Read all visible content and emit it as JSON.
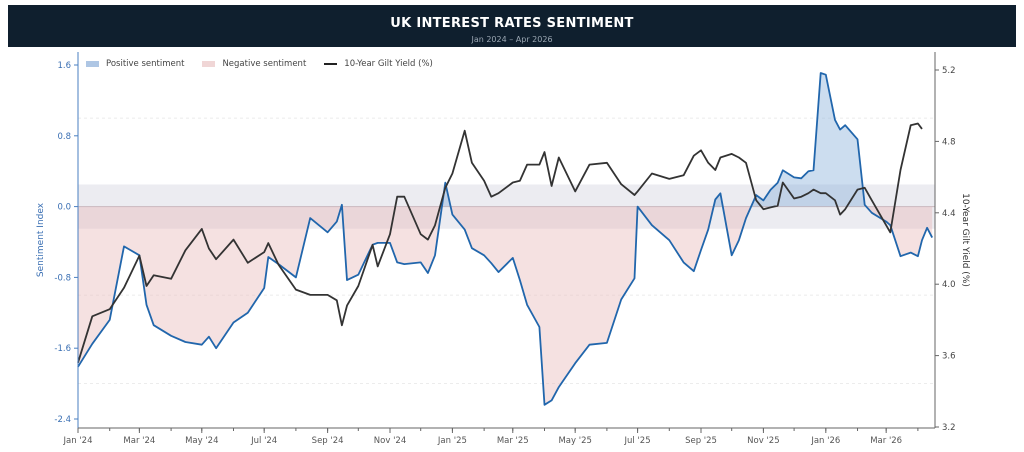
{
  "header": {
    "title": "UK INTEREST RATES SENTIMENT",
    "subtitle": "Jan 2024 – Apr 2026"
  },
  "chart_data": {
    "type": "line",
    "title": "UK INTEREST RATES SENTIMENT",
    "subtitle": "Jan 2024 – Apr 2026",
    "ylabel": "Sentiment Index",
    "y2label": "10-Year Gilt Yield (%)",
    "ylim": [
      -2.5,
      1.75
    ],
    "y2lim": [
      3.18,
      5.3
    ],
    "yticks": [
      "1.6",
      "0.8",
      "0.0",
      "-0.8",
      "-1.6",
      "-2.4"
    ],
    "y2ticks": [
      "5.2",
      "4.8",
      "4.4",
      "4.0",
      "3.6",
      "3.2"
    ],
    "xticks": [
      "Jan '24",
      "Mar '24",
      "May '24",
      "Jul '24",
      "Sep '24",
      "Nov '24",
      "Jan '25",
      "Mar '25",
      "May '25",
      "Jul '25",
      "Sep '25",
      "Nov '25",
      "Jan '26",
      "Mar '26"
    ],
    "xtick_dates": [
      "2024-01-01",
      "2024-03-01",
      "2024-05-01",
      "2024-07-01",
      "2024-09-01",
      "2024-11-01",
      "2025-01-01",
      "2025-03-01",
      "2025-05-01",
      "2025-07-01",
      "2025-09-01",
      "2025-11-01",
      "2026-01-01",
      "2026-03-01"
    ],
    "neutral_band": [
      -0.25,
      0.25
    ],
    "grid": "dashed horizontal",
    "legend": {
      "placement": "top-left",
      "entries": [
        "Positive sentiment",
        "Negative sentiment",
        "10-Year Gilt Yield (%)"
      ]
    },
    "colors": {
      "sentiment": "#2166ac",
      "positive_fill": "#8fb3dc",
      "negative_fill": "#e8bcbc",
      "yield": "#333333",
      "band": "#ececf1"
    },
    "x": [
      "2024-01-01",
      "2024-01-15",
      "2024-02-01",
      "2024-02-15",
      "2024-03-01",
      "2024-03-08",
      "2024-03-15",
      "2024-04-01",
      "2024-04-15",
      "2024-05-01",
      "2024-05-08",
      "2024-05-15",
      "2024-06-01",
      "2024-06-15",
      "2024-07-01",
      "2024-07-05",
      "2024-07-15",
      "2024-08-01",
      "2024-08-15",
      "2024-09-01",
      "2024-09-10",
      "2024-09-15",
      "2024-09-20",
      "2024-10-01",
      "2024-10-15",
      "2024-10-20",
      "2024-11-01",
      "2024-11-08",
      "2024-11-15",
      "2024-12-01",
      "2024-12-08",
      "2024-12-15",
      "2024-12-25",
      "2025-01-01",
      "2025-01-13",
      "2025-01-20",
      "2025-02-01",
      "2025-02-08",
      "2025-02-15",
      "2025-03-01",
      "2025-03-08",
      "2025-03-15",
      "2025-03-27",
      "2025-04-01",
      "2025-04-08",
      "2025-04-15",
      "2025-05-01",
      "2025-05-15",
      "2025-06-01",
      "2025-06-15",
      "2025-06-28",
      "2025-07-01",
      "2025-07-15",
      "2025-08-01",
      "2025-08-15",
      "2025-08-25",
      "2025-09-01",
      "2025-09-08",
      "2025-09-15",
      "2025-09-20",
      "2025-10-01",
      "2025-10-08",
      "2025-10-15",
      "2025-10-25",
      "2025-11-01",
      "2025-11-08",
      "2025-11-15",
      "2025-11-20",
      "2025-12-01",
      "2025-12-08",
      "2025-12-15",
      "2025-12-20",
      "2025-12-27",
      "2026-01-01",
      "2026-01-10",
      "2026-01-15",
      "2026-01-20",
      "2026-02-01",
      "2026-02-08",
      "2026-02-15",
      "2026-03-01",
      "2026-03-05",
      "2026-03-15",
      "2026-03-25",
      "2026-04-01",
      "2026-04-05",
      "2026-04-10",
      "2026-04-15"
    ],
    "series": [
      {
        "name": "Sentiment Index",
        "axis": "left",
        "values": [
          -1.81,
          -1.55,
          -1.28,
          -0.45,
          -0.55,
          -1.11,
          -1.34,
          -1.46,
          -1.53,
          -1.56,
          -1.47,
          -1.6,
          -1.31,
          -1.2,
          -0.92,
          -0.57,
          -0.65,
          -0.8,
          -0.13,
          -0.29,
          -0.17,
          0.02,
          -0.83,
          -0.77,
          -0.43,
          -0.41,
          -0.41,
          -0.63,
          -0.65,
          -0.63,
          -0.75,
          -0.55,
          0.27,
          -0.09,
          -0.26,
          -0.47,
          -0.55,
          -0.64,
          -0.74,
          -0.58,
          -0.83,
          -1.11,
          -1.36,
          -2.24,
          -2.19,
          -2.04,
          -1.77,
          -1.56,
          -1.54,
          -1.05,
          -0.81,
          0.0,
          -0.21,
          -0.38,
          -0.63,
          -0.73,
          -0.49,
          -0.26,
          0.08,
          0.15,
          -0.55,
          -0.38,
          -0.13,
          0.13,
          0.07,
          0.19,
          0.27,
          0.41,
          0.33,
          0.32,
          0.4,
          0.41,
          1.51,
          1.49,
          0.98,
          0.87,
          0.92,
          0.76,
          0.02,
          -0.07,
          -0.17,
          -0.21,
          -0.56,
          -0.52,
          -0.56,
          -0.38,
          -0.24,
          -0.35
        ]
      },
      {
        "name": "10-Year Gilt Yield (%)",
        "axis": "right",
        "values": [
          3.56,
          3.82,
          3.86,
          3.98,
          4.16,
          3.99,
          4.05,
          4.03,
          4.19,
          4.31,
          4.2,
          4.14,
          4.25,
          4.12,
          4.18,
          4.23,
          4.11,
          3.97,
          3.94,
          3.94,
          3.91,
          3.77,
          3.88,
          3.99,
          4.22,
          4.1,
          4.28,
          4.49,
          4.49,
          4.28,
          4.25,
          4.33,
          4.54,
          4.62,
          4.86,
          4.68,
          4.58,
          4.49,
          4.51,
          4.57,
          4.58,
          4.67,
          4.67,
          4.74,
          4.55,
          4.71,
          4.52,
          4.67,
          4.68,
          4.56,
          4.5,
          4.52,
          4.62,
          4.59,
          4.61,
          4.72,
          4.75,
          4.68,
          4.64,
          4.71,
          4.73,
          4.71,
          4.68,
          4.47,
          4.42,
          4.43,
          4.44,
          4.57,
          4.48,
          4.49,
          4.51,
          4.53,
          4.51,
          4.51,
          4.47,
          4.39,
          4.42,
          4.53,
          4.54,
          4.47,
          4.33,
          4.29,
          4.64,
          4.89,
          4.9,
          4.87,
          null,
          null
        ]
      }
    ]
  }
}
